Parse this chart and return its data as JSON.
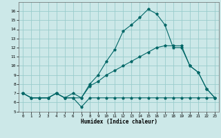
{
  "xlabel": "Humidex (Indice chaleur)",
  "ylabel": "",
  "background_color": "#cce8e8",
  "grid_color": "#99cccc",
  "line_color": "#006666",
  "xlim": [
    -0.5,
    23.5
  ],
  "ylim": [
    5,
    17
  ],
  "xticks": [
    0,
    1,
    2,
    3,
    4,
    5,
    6,
    7,
    8,
    9,
    10,
    11,
    12,
    13,
    14,
    15,
    16,
    17,
    18,
    19,
    20,
    21,
    22,
    23
  ],
  "yticks": [
    5,
    6,
    7,
    8,
    9,
    10,
    11,
    12,
    13,
    14,
    15,
    16
  ],
  "line1_x": [
    0,
    1,
    2,
    3,
    4,
    5,
    6,
    7,
    8,
    9,
    10,
    11,
    12,
    13,
    14,
    15,
    16,
    17,
    18,
    19,
    20,
    21,
    22,
    23
  ],
  "line1_y": [
    7.0,
    6.5,
    6.5,
    6.5,
    7.0,
    6.5,
    6.5,
    5.5,
    6.5,
    6.5,
    6.5,
    6.5,
    6.5,
    6.5,
    6.5,
    6.5,
    6.5,
    6.5,
    6.5,
    6.5,
    6.5,
    6.5,
    6.5,
    6.5
  ],
  "line2_x": [
    0,
    1,
    2,
    3,
    4,
    5,
    6,
    7,
    8,
    9,
    10,
    11,
    12,
    13,
    14,
    15,
    16,
    17,
    18,
    19,
    20,
    21,
    22,
    23
  ],
  "line2_y": [
    7.0,
    6.5,
    6.5,
    6.5,
    7.0,
    6.5,
    6.5,
    6.5,
    8.0,
    9.0,
    10.5,
    11.8,
    13.8,
    14.5,
    15.3,
    16.2,
    15.7,
    14.5,
    12.0,
    12.0,
    10.0,
    9.3,
    7.5,
    6.5
  ],
  "line3_x": [
    0,
    1,
    2,
    3,
    4,
    5,
    6,
    7,
    8,
    9,
    10,
    11,
    12,
    13,
    14,
    15,
    16,
    17,
    18,
    19,
    20,
    21,
    22,
    23
  ],
  "line3_y": [
    7.0,
    6.5,
    6.5,
    6.5,
    7.0,
    6.5,
    7.0,
    6.5,
    7.8,
    8.3,
    9.0,
    9.5,
    10.0,
    10.5,
    11.0,
    11.5,
    12.0,
    12.2,
    12.2,
    12.2,
    10.0,
    9.3,
    7.5,
    6.5
  ]
}
